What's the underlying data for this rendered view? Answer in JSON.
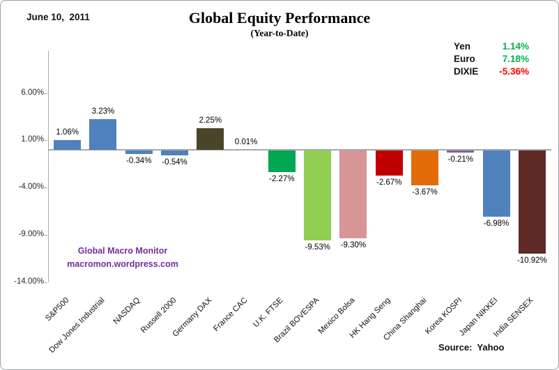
{
  "header": {
    "date": "June 10,  2011",
    "title": "Global Equity Performance",
    "subtitle": "(Year-to-Date)"
  },
  "fx_legend": {
    "rows": [
      {
        "label": "Yen",
        "value": "1.14%",
        "color": "#00B050"
      },
      {
        "label": "Euro",
        "value": "7.18%",
        "color": "#00B050"
      },
      {
        "label": "DIXIE",
        "value": "-5.36%",
        "color": "#FF0000"
      }
    ]
  },
  "watermark": {
    "line1": "Global Macro Monitor",
    "line2": "macromon.wordpress.com",
    "color": "#7030A0"
  },
  "source": {
    "label": "Source:",
    "value": "Yahoo"
  },
  "chart_data": {
    "type": "bar",
    "title": "Global Equity Performance",
    "subtitle": "(Year-to-Date)",
    "xlabel": "",
    "ylabel": "",
    "ylim": [
      -14,
      6
    ],
    "grid": false,
    "legend_position": "top-right",
    "yticks": [
      6,
      1,
      -4,
      -9,
      -14
    ],
    "ytick_labels": [
      "6.00%",
      "1.00%",
      "-4.00%",
      "-9.00%",
      "-14.00%"
    ],
    "categories": [
      "S&P500",
      "Dow Jones Industrial",
      "NASDAQ",
      "Russell 2000",
      "Germany DAX",
      "France CAC",
      "U.K. FTSE",
      "Brazil BOVESPA",
      "Mexico Bolsa",
      "HK Hang Seng",
      "China Shanghai",
      "Korea KOSPI",
      "Japan NIKKEI",
      "India SENSEX"
    ],
    "values": [
      1.06,
      3.23,
      -0.34,
      -0.54,
      2.25,
      0.01,
      -2.27,
      -9.53,
      -9.3,
      -2.67,
      -3.67,
      -0.21,
      -6.98,
      -10.92
    ],
    "value_labels": [
      "1.06%",
      "3.23%",
      "-0.34%",
      "-0.54%",
      "2.25%",
      "0.01%",
      "-2.27%",
      "-9.53%",
      "-9.30%",
      "-2.67%",
      "-3.67%",
      "-0.21%",
      "-6.98%",
      "-10.92%"
    ],
    "bar_colors": [
      "#4F81BD",
      "#4F81BD",
      "#4F81BD",
      "#4F81BD",
      "#4A4429",
      "#4F81BD",
      "#00A651",
      "#91CE51",
      "#D79695",
      "#C00000",
      "#E36C09",
      "#8064A2",
      "#4F81BD",
      "#5F2A26"
    ]
  }
}
